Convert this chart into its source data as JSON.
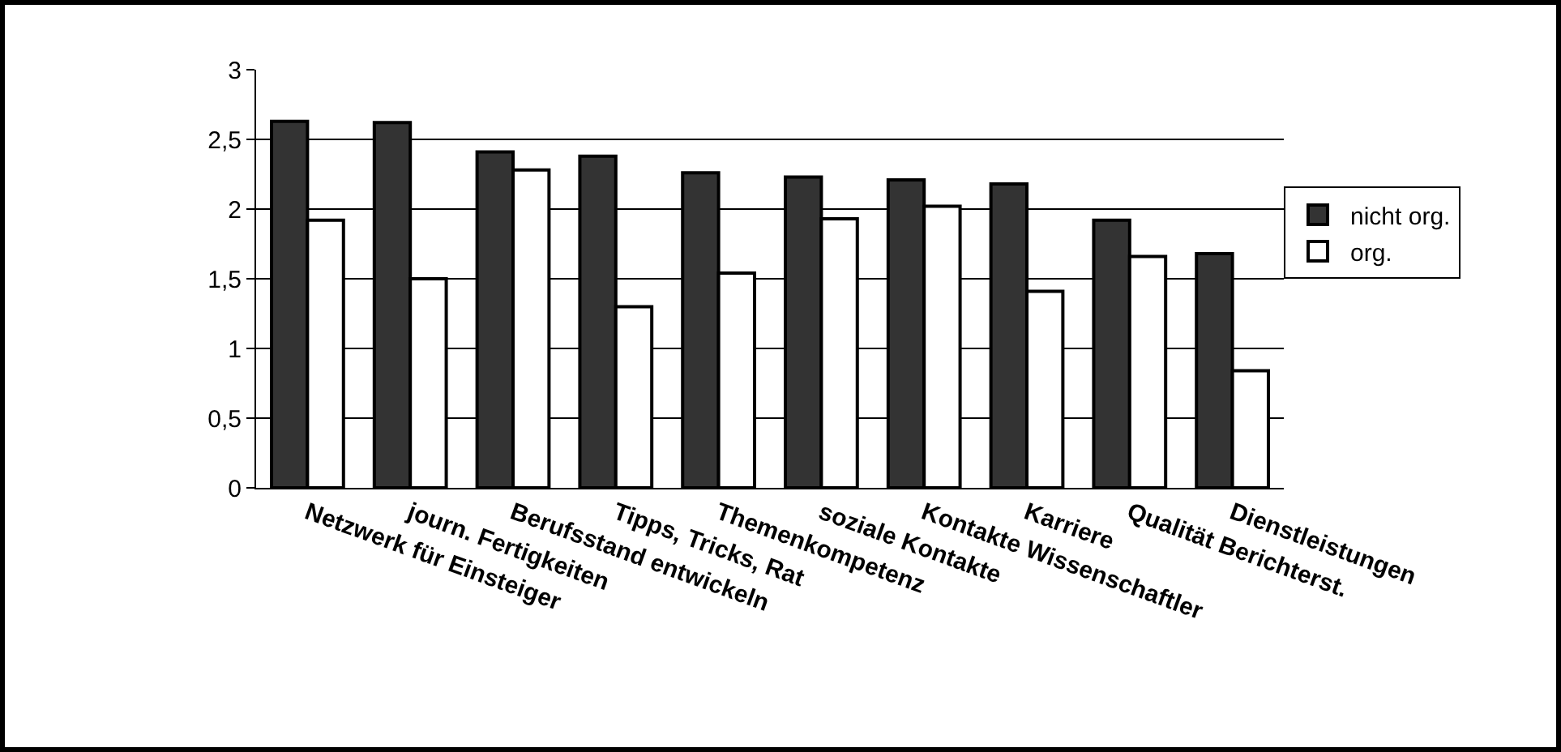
{
  "chart_data": {
    "type": "bar",
    "categories": [
      "Netzwerk für Einsteiger",
      "journ. Fertigkeiten",
      "Berufsstand entwickeln",
      "Tipps, Tricks, Rat",
      "Themenkompetenz",
      "soziale Kontakte",
      "Kontakte Wissenschaftler",
      "Karriere",
      "Qualität Berichterst.",
      "Dienstleistungen"
    ],
    "series": [
      {
        "name": "nicht org.",
        "color": "#333333",
        "values": [
          2.63,
          2.62,
          2.41,
          2.38,
          2.26,
          2.23,
          2.21,
          2.18,
          1.92,
          1.68
        ]
      },
      {
        "name": "org.",
        "color": "#ffffff",
        "values": [
          1.92,
          1.5,
          2.28,
          1.3,
          1.54,
          1.93,
          2.02,
          1.41,
          1.66,
          0.84
        ]
      }
    ],
    "ylim": [
      0,
      3
    ],
    "yticks": [
      0,
      {
        "value": 0.5,
        "label": "0,5"
      },
      1,
      {
        "value": 1.5,
        "label": "1,5"
      },
      2,
      {
        "value": 2.5,
        "label": "2,5"
      },
      3
    ],
    "grid": "y",
    "legend": "right"
  }
}
